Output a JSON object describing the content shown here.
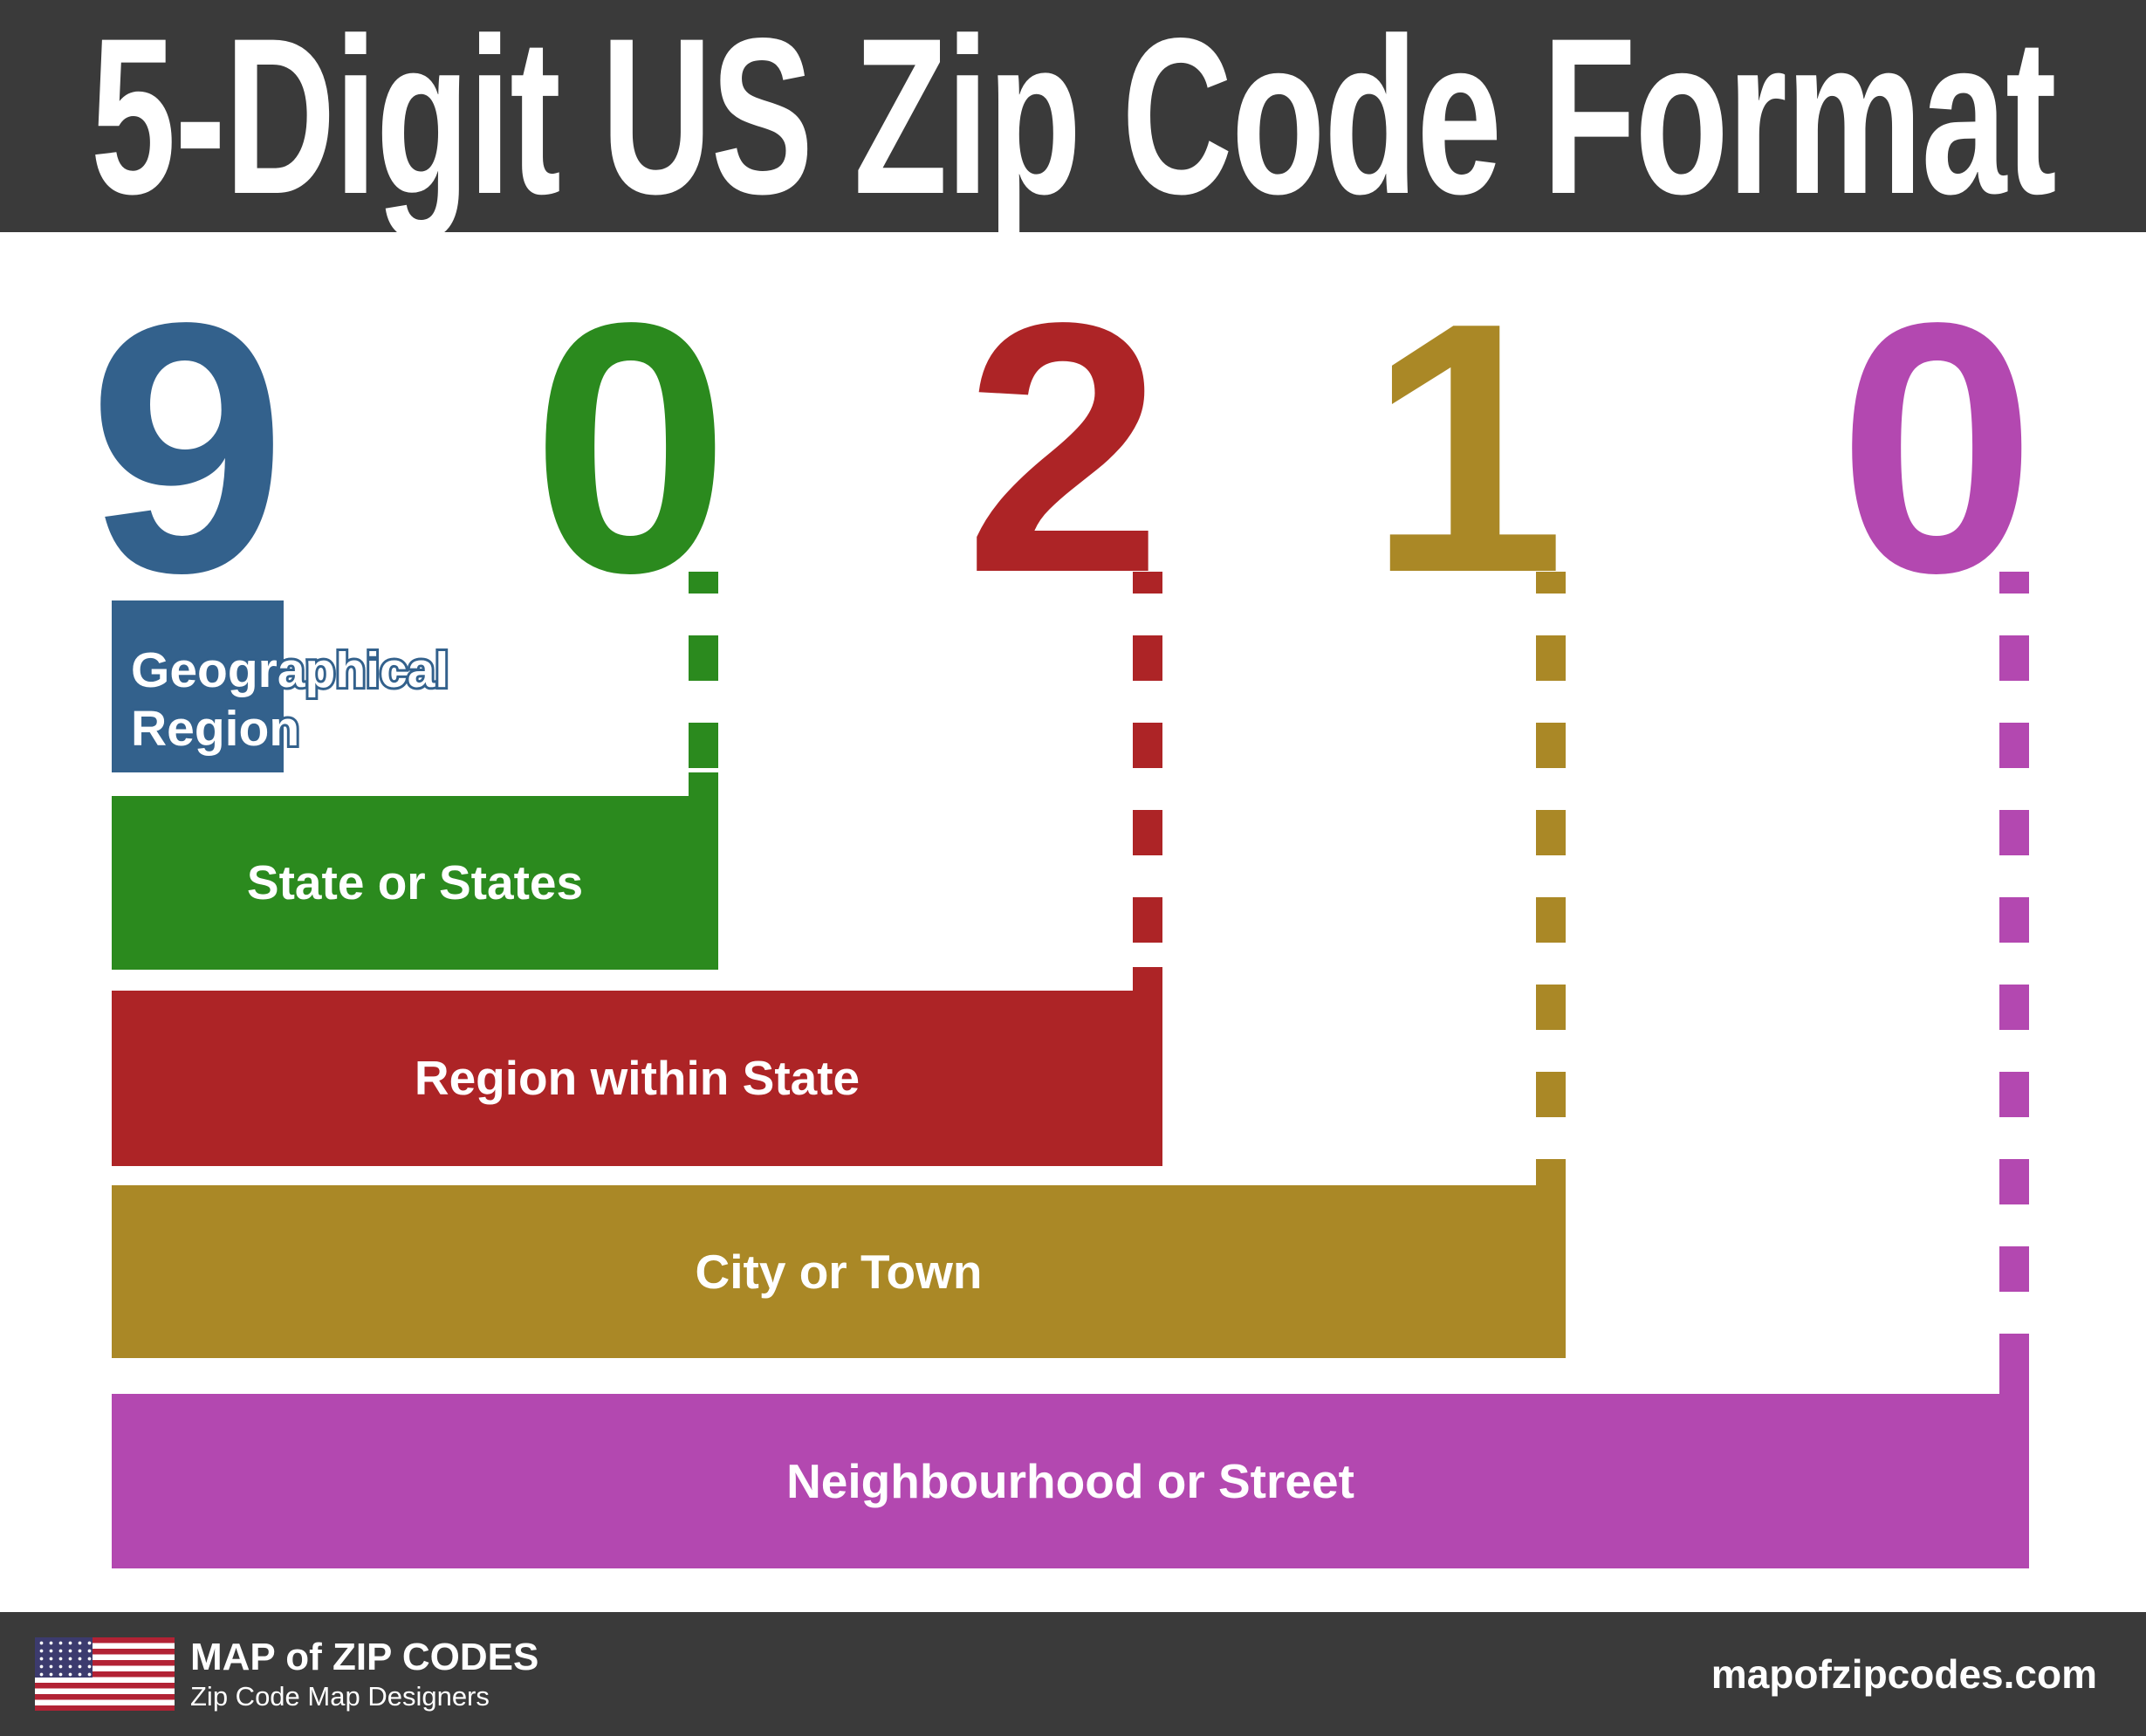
{
  "title": "5-Digit US Zip Code Format",
  "zip_code": "90210",
  "digits": [
    {
      "value": "9",
      "label": "Geographical Region",
      "color": "#33618c"
    },
    {
      "value": "0",
      "label": "State or States",
      "color": "#2b8a1e"
    },
    {
      "value": "2",
      "label": "Region within State",
      "color": "#ad2426"
    },
    {
      "value": "1",
      "label": "City or Town",
      "color": "#aa8826"
    },
    {
      "value": "0",
      "label": "Neighbourhood or Street",
      "color": "#b348b0"
    }
  ],
  "footer": {
    "brand": "MAP of ZIP CODES",
    "tagline": "Zip Code Map Designers",
    "website": "mapofzipcodes.com"
  },
  "palette": {
    "header_bg": "#3a3a3a",
    "footer_bg": "#3a3a3a",
    "blue": "#33618c",
    "green": "#2b8a1e",
    "red": "#ad2426",
    "gold": "#aa8826",
    "magenta": "#b348b0",
    "flag_red": "#b22234",
    "flag_blue": "#3c3b6e",
    "text_white": "#ffffff"
  }
}
